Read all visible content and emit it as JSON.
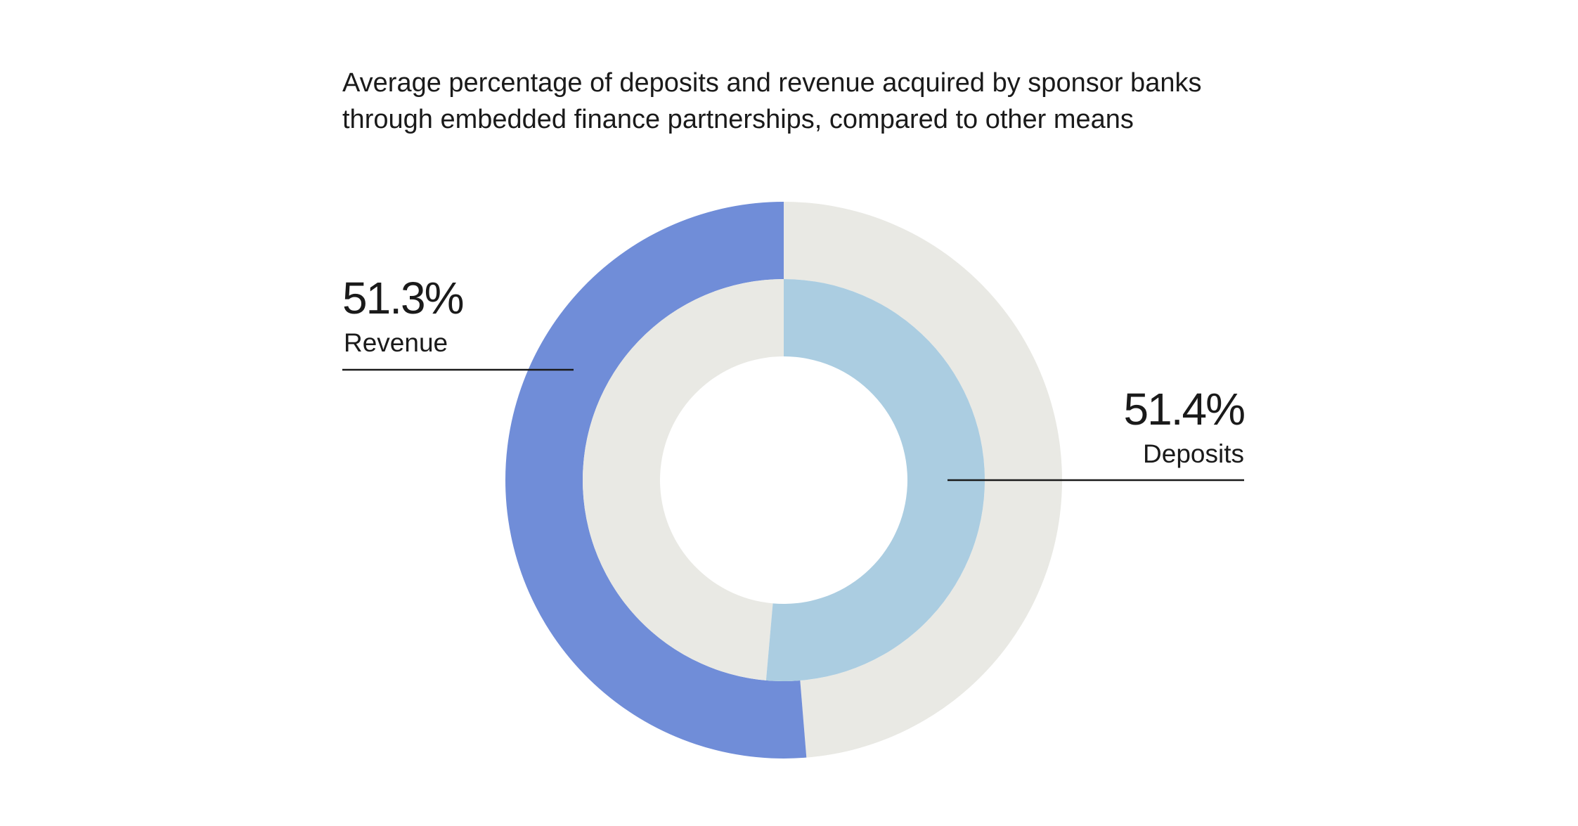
{
  "chart_data": {
    "type": "pie",
    "variant": "nested-donut",
    "title_lines": [
      "Average percentage of deposits and revenue acquired by sponsor banks",
      "through embedded finance partnerships, compared to other means"
    ],
    "rings": [
      {
        "ring": "outer",
        "name": "Revenue",
        "value_label": "51.3%",
        "value": 51.3,
        "color": "#708dd8",
        "remainder_color": "#e9e9e4",
        "direction": "counterclockwise",
        "callout_side": "left"
      },
      {
        "ring": "inner",
        "name": "Deposits",
        "value_label": "51.4%",
        "value": 51.4,
        "color": "#abcde1",
        "remainder_color": "#e9e9e4",
        "direction": "clockwise",
        "callout_side": "right"
      }
    ],
    "colors": {
      "background": "#ffffff",
      "remainder": "#e9e9e4",
      "text": "#1a1a1a",
      "leader_line": "#1a1a1a"
    }
  }
}
